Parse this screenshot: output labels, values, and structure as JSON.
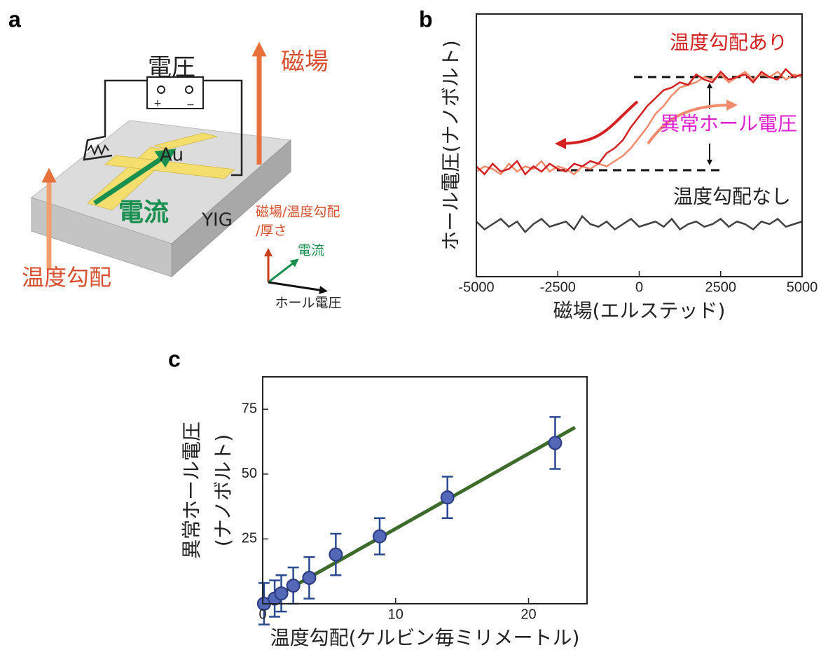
{
  "panels": [
    "a",
    "b",
    "c"
  ],
  "diagram": {
    "voltage": "電圧",
    "field": "磁場",
    "au": "Au",
    "current": "電流",
    "yig": "YIG",
    "axes_label": [
      "磁場/温度勾配",
      "/厚さ"
    ],
    "axes_current": "電流",
    "axes_hall": "ホール電圧",
    "gradient": "温度勾配",
    "plus": "+",
    "minus": "−"
  },
  "chart_data": [
    {
      "type": "line",
      "xlabel": "磁場(エルステッド)",
      "ylabel": "ホール電圧(ナノボルト)",
      "xlim": [
        -5000,
        5000
      ],
      "xticks": [
        -5000,
        -2500,
        0,
        2500,
        5000
      ],
      "ylim": [
        -20,
        80
      ],
      "annotations": [
        "異常ホール電圧"
      ],
      "x": [
        -5000,
        -4750,
        -4500,
        -4250,
        -4000,
        -3750,
        -3500,
        -3250,
        -3000,
        -2750,
        -2500,
        -2250,
        -2000,
        -1750,
        -1500,
        -1250,
        -1000,
        -750,
        -500,
        -250,
        0,
        250,
        500,
        750,
        1000,
        1250,
        1500,
        1750,
        2000,
        2250,
        2500,
        2750,
        3000,
        3250,
        3500,
        3750,
        4000,
        4250,
        4500,
        4750,
        5000
      ],
      "series": [
        {
          "color": "#f08a6a",
          "values": [
            20,
            22,
            21,
            19,
            23,
            20,
            22,
            21,
            24,
            20,
            22,
            21,
            19,
            22,
            21,
            23,
            22,
            24,
            26,
            29,
            33,
            37,
            42,
            45,
            49,
            52,
            53,
            54,
            56,
            55,
            57,
            54,
            56,
            58,
            55,
            57,
            56,
            58,
            55,
            57,
            56
          ]
        },
        {
          "name": "温度勾配あり",
          "color": "#d42020",
          "values": [
            22,
            19,
            23,
            20,
            21,
            24,
            19,
            22,
            20,
            23,
            21,
            20,
            23,
            22,
            24,
            23,
            27,
            29,
            32,
            37,
            41,
            45,
            48,
            51,
            52,
            54,
            53,
            57,
            55,
            54,
            58,
            55,
            56,
            57,
            54,
            58,
            56,
            55,
            59,
            56,
            57
          ]
        },
        {
          "name": "温度勾配なし",
          "color": "#404040",
          "values": [
            1,
            -2,
            0,
            2,
            -1,
            1,
            -3,
            0,
            2,
            -1,
            0,
            1,
            -2,
            3,
            0,
            -1,
            1,
            -2,
            0,
            2,
            -1,
            0,
            1,
            -1,
            2,
            -2,
            0,
            1,
            -1,
            0,
            2,
            -1,
            1,
            0,
            -2,
            1,
            0,
            2,
            -1,
            0,
            1
          ]
        }
      ]
    },
    {
      "type": "scatter",
      "xlabel": "温度勾配(ケルビン毎ミリメートル)",
      "ylabel": [
        "異常ホール電圧",
        "(ナノボルト)"
      ],
      "xlim": [
        0,
        24.4
      ],
      "xticks": [
        0,
        10,
        20
      ],
      "ylim": [
        0,
        87.5
      ],
      "yticks": [
        25,
        50,
        75
      ],
      "x": [
        0.1,
        0.9,
        1.4,
        2.3,
        3.5,
        5.5,
        8.8,
        13.9,
        22.0
      ],
      "series": [
        {
          "color": "#5468b8",
          "values": [
            0,
            2,
            4,
            7,
            10,
            19,
            26,
            41,
            62
          ],
          "errors": [
            8,
            7,
            7,
            7,
            8,
            8,
            7,
            8,
            10
          ]
        }
      ],
      "fit": {
        "color": "#3d6b2a",
        "x": [
          0,
          23.5
        ],
        "y": [
          0,
          68
        ]
      }
    }
  ]
}
